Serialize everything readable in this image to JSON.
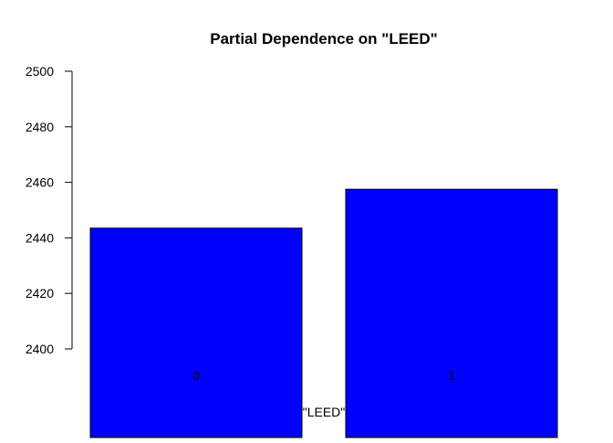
{
  "chart_data": {
    "type": "bar",
    "title": "Partial Dependence on \"LEED\"",
    "xlabel": "\"LEED\"",
    "ylabel": "",
    "categories": [
      "0",
      "1"
    ],
    "values": [
      2443.5,
      2457.5
    ],
    "ylim": [
      2400,
      2500
    ],
    "yticks": [
      2400,
      2420,
      2440,
      2460,
      2480,
      2500
    ],
    "bar_color": "#0000ff",
    "grid": false,
    "legend": "none"
  }
}
